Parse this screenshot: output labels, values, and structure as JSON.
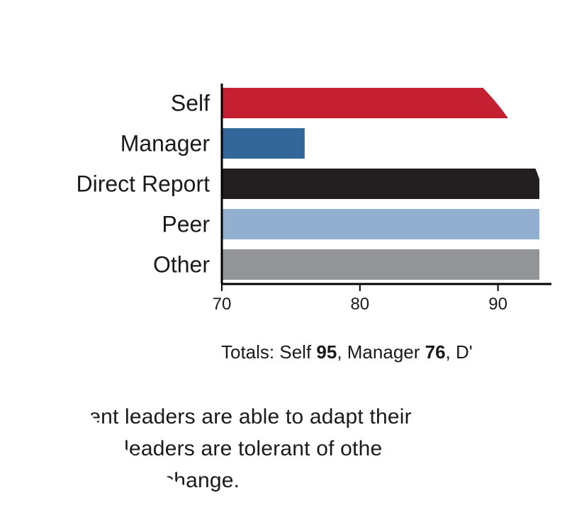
{
  "chart_data": {
    "type": "bar",
    "orientation": "horizontal",
    "categories": [
      "Self",
      "Manager",
      "Direct Report",
      "Peer",
      "Other"
    ],
    "values": [
      95,
      76,
      93,
      93,
      93
    ],
    "colors": [
      "#c42032",
      "#336699",
      "#231f20",
      "#93afd0",
      "#929497"
    ],
    "xlim": [
      70,
      95
    ],
    "xticks": [
      "70",
      "80",
      "90"
    ],
    "xlabel": "",
    "ylabel": "",
    "title": ""
  },
  "totals": {
    "prefix": "Totals: Self ",
    "self_value": "95",
    "sep1": ", Manager ",
    "manager_value": "76",
    "sep2": ", D'"
  },
  "body_text": {
    "line1": "ment leaders are able to adapt their",
    "line2": "ble leaders are tolerant of othe",
    "line3": "change."
  }
}
